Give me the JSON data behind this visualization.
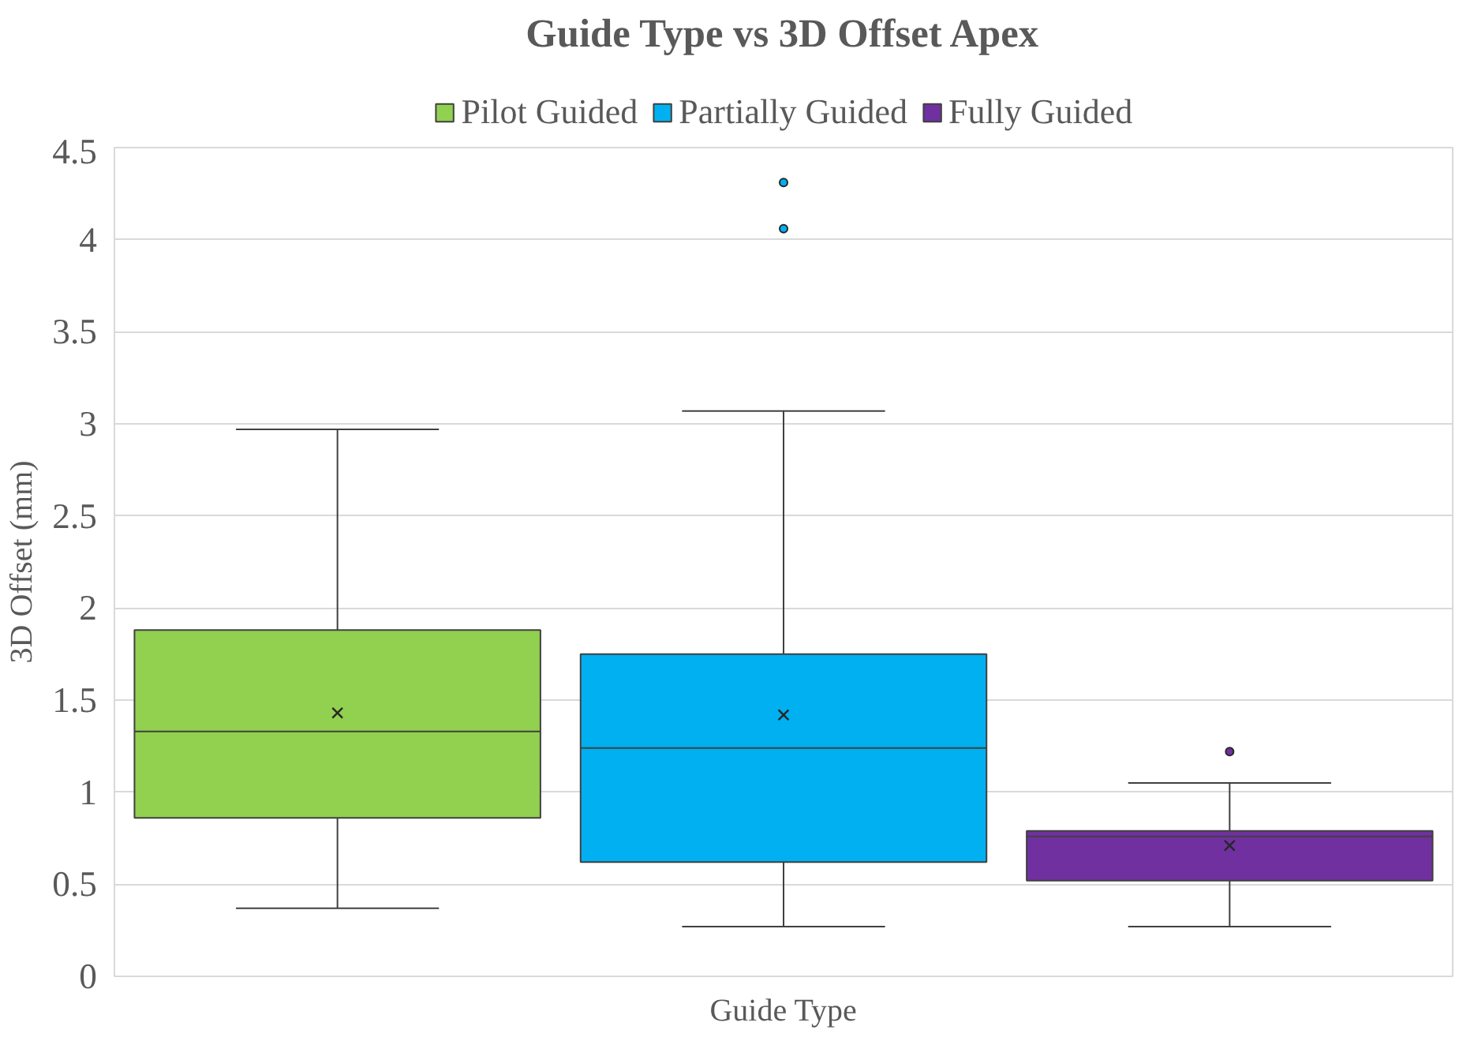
{
  "chart_data": {
    "type": "box",
    "title": "Guide Type vs 3D Offset Apex",
    "xlabel": "Guide Type",
    "ylabel": "3D Offset (mm)",
    "categories": [
      null
    ],
    "series": [
      {
        "name": "Pilot Guided",
        "color": "#92d050",
        "boxes": [
          {
            "low": 0.37,
            "q1": 0.86,
            "median": 1.33,
            "q3": 1.88,
            "high": 2.97,
            "mean": 1.43
          }
        ]
      },
      {
        "name": "Partially Guided",
        "color": "#00b0f0",
        "boxes": [
          {
            "low": 0.27,
            "q1": 0.62,
            "median": 1.24,
            "q3": 1.75,
            "high": 3.07,
            "mean": 1.42,
            "outliers": [
              4.06,
              4.31
            ]
          }
        ]
      },
      {
        "name": "Fully Guided",
        "color": "#7030a0",
        "boxes": [
          {
            "low": 0.27,
            "q1": 0.52,
            "median": 0.76,
            "q3": 0.79,
            "high": 1.05,
            "mean": 0.71,
            "outliers": [
              1.22
            ]
          }
        ]
      }
    ],
    "ylim": [
      0,
      4.5
    ],
    "yticks": [
      0,
      0.5,
      1,
      1.5,
      2,
      2.5,
      3,
      3.5,
      4,
      4.5
    ],
    "grid": "y",
    "legend": "top"
  }
}
